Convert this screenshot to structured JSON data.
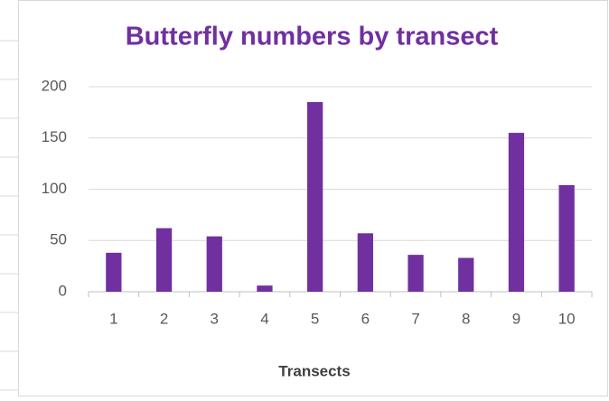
{
  "chart_data": {
    "type": "bar",
    "title": "Butterfly numbers by transect",
    "x_label": "Transects",
    "categories": [
      "1",
      "2",
      "3",
      "4",
      "5",
      "6",
      "7",
      "8",
      "9",
      "10"
    ],
    "values": [
      38,
      62,
      54,
      6,
      185,
      57,
      36,
      33,
      155,
      104
    ],
    "color": "#7030a0",
    "ylim": [
      0,
      200
    ],
    "yticks": [
      0,
      50,
      100,
      150,
      200
    ],
    "grid": true
  }
}
